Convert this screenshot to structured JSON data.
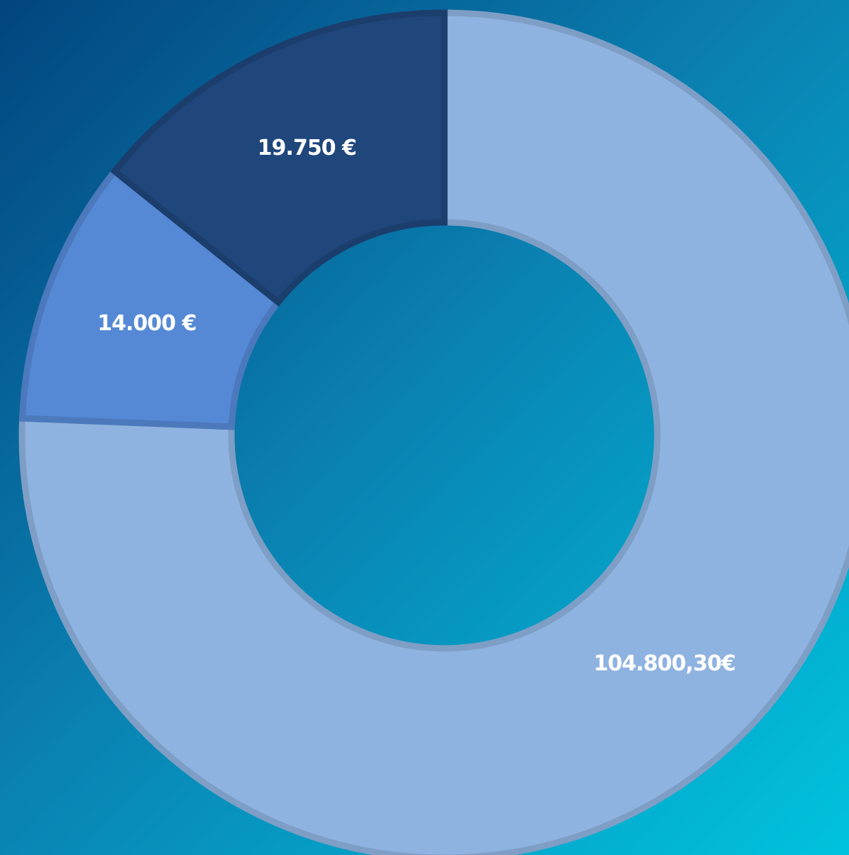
{
  "chart_data": {
    "type": "pie",
    "values": [
      104800.3,
      14000,
      19750
    ],
    "value_labels": [
      "104.800,30€",
      "14.000 €",
      "19.750 €"
    ],
    "colors": [
      "#8fb3e0",
      "#5589d6",
      "#1f477c"
    ],
    "donut": true
  }
}
